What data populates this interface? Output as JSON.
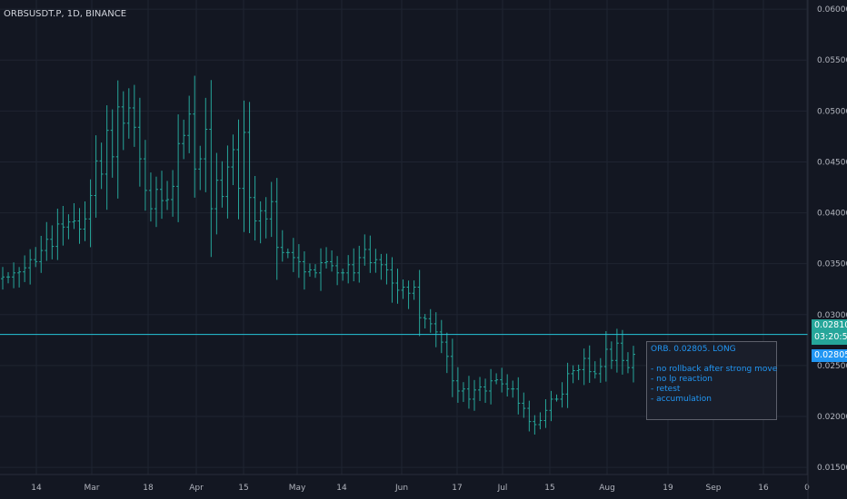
{
  "header": {
    "symbol_title": "ORBSUSDT.P, 1D, BINANCE"
  },
  "price_axis": {
    "labels": [
      "0.06000",
      "0.05500",
      "0.05000",
      "0.04500",
      "0.04000",
      "0.03500",
      "0.03000",
      "0.02500",
      "0.02000",
      "0.01500"
    ],
    "last_price": "0.02810",
    "countdown": "03:20:55",
    "target_price": "0.02805"
  },
  "time_axis": {
    "labels": [
      "14",
      "Mar",
      "18",
      "Apr",
      "15",
      "May",
      "14",
      "Jun",
      "17",
      "Jul",
      "15",
      "Aug",
      "19",
      "Sep",
      "16",
      "0"
    ]
  },
  "note": {
    "title": "ORB. 0.02805. LONG",
    "lines": [
      "- no rollback after strong move",
      "- no lp reaction",
      "- retest",
      "- accumulation"
    ]
  },
  "colors": {
    "background": "#131722",
    "candle": "#26a69a",
    "level_line": "#26c6da",
    "note_text": "#2196f3",
    "grid": "#1f2431"
  },
  "chart_data": {
    "type": "ohlc",
    "interval": "1D",
    "exchange": "BINANCE",
    "ylim": [
      0.0143,
      0.0609
    ],
    "y_ticks": [
      0.06,
      0.055,
      0.05,
      0.045,
      0.04,
      0.035,
      0.03,
      0.025,
      0.02,
      0.015
    ],
    "level": 0.02805,
    "closes": [
      0.0337,
      0.0337,
      0.0341,
      0.0342,
      0.0346,
      0.0354,
      0.0352,
      0.0363,
      0.0374,
      0.0367,
      0.0389,
      0.0386,
      0.0391,
      0.0392,
      0.0384,
      0.0394,
      0.0417,
      0.0451,
      0.0438,
      0.0481,
      0.0455,
      0.0504,
      0.0488,
      0.0503,
      0.0484,
      0.0453,
      0.0422,
      0.0404,
      0.0423,
      0.0412,
      0.0413,
      0.0426,
      0.0468,
      0.0476,
      0.0497,
      0.0443,
      0.0453,
      0.0482,
      0.0404,
      0.0432,
      0.0416,
      0.0445,
      0.0462,
      0.0424,
      0.0479,
      0.0415,
      0.0392,
      0.0402,
      0.0394,
      0.0411,
      0.0366,
      0.0361,
      0.0361,
      0.0356,
      0.0352,
      0.0342,
      0.0344,
      0.0341,
      0.0351,
      0.0352,
      0.0348,
      0.0341,
      0.0341,
      0.0349,
      0.0341,
      0.0356,
      0.0364,
      0.0351,
      0.0354,
      0.0349,
      0.0344,
      0.0331,
      0.0324,
      0.0327,
      0.0321,
      0.0327,
      0.0297,
      0.0296,
      0.0291,
      0.0283,
      0.0273,
      0.0259,
      0.0235,
      0.0225,
      0.0227,
      0.0217,
      0.0226,
      0.0229,
      0.0225,
      0.0235,
      0.0236,
      0.0232,
      0.0227,
      0.0227,
      0.0213,
      0.0208,
      0.0195,
      0.0192,
      0.0196,
      0.0206,
      0.0217,
      0.0217,
      0.0222,
      0.0242,
      0.0245,
      0.0246,
      0.0257,
      0.0244,
      0.0242,
      0.0249,
      0.0266,
      0.0255,
      0.0272,
      0.0255,
      0.0248,
      0.0261
    ]
  }
}
